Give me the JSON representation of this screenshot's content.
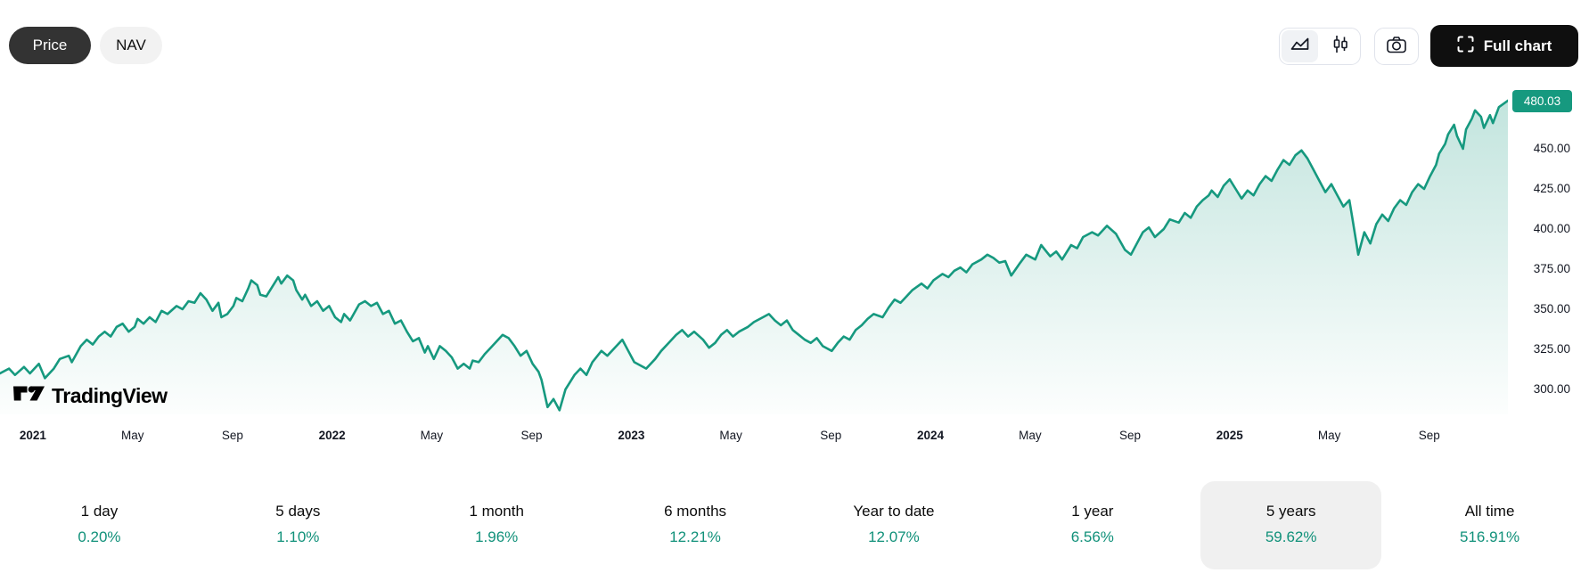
{
  "toolbar": {
    "price_label": "Price",
    "nav_label": "NAV",
    "full_chart_label": "Full chart"
  },
  "logo": {
    "text": "TradingView"
  },
  "price_scale": {
    "current_value": "480.03",
    "labels": [
      "450.00",
      "425.00",
      "400.00",
      "375.00",
      "350.00",
      "325.00",
      "300.00"
    ]
  },
  "time_axis": {
    "ticks": [
      {
        "label": "2021",
        "year": 2021.0,
        "bold": true
      },
      {
        "label": "May",
        "year": 2021.333,
        "bold": false
      },
      {
        "label": "Sep",
        "year": 2021.667,
        "bold": false
      },
      {
        "label": "2022",
        "year": 2022.0,
        "bold": true
      },
      {
        "label": "May",
        "year": 2022.333,
        "bold": false
      },
      {
        "label": "Sep",
        "year": 2022.667,
        "bold": false
      },
      {
        "label": "2023",
        "year": 2023.0,
        "bold": true
      },
      {
        "label": "May",
        "year": 2023.333,
        "bold": false
      },
      {
        "label": "Sep",
        "year": 2023.667,
        "bold": false
      },
      {
        "label": "2024",
        "year": 2024.0,
        "bold": true
      },
      {
        "label": "May",
        "year": 2024.333,
        "bold": false
      },
      {
        "label": "Sep",
        "year": 2024.667,
        "bold": false
      },
      {
        "label": "2025",
        "year": 2025.0,
        "bold": true
      },
      {
        "label": "May",
        "year": 2025.333,
        "bold": false
      },
      {
        "label": "Sep",
        "year": 2025.667,
        "bold": false
      }
    ]
  },
  "stats": {
    "items": [
      {
        "label": "1 day",
        "value": "0.20%",
        "selected": false
      },
      {
        "label": "5 days",
        "value": "1.10%",
        "selected": false
      },
      {
        "label": "1 month",
        "value": "1.96%",
        "selected": false
      },
      {
        "label": "6 months",
        "value": "12.21%",
        "selected": false
      },
      {
        "label": "Year to date",
        "value": "12.07%",
        "selected": false
      },
      {
        "label": "1 year",
        "value": "6.56%",
        "selected": false
      },
      {
        "label": "5 years",
        "value": "59.62%",
        "selected": true
      },
      {
        "label": "All time",
        "value": "516.91%",
        "selected": false
      }
    ]
  },
  "colors": {
    "accent_teal": "#16997f",
    "value_teal": "#11917a",
    "badge_bg": "#16997f",
    "area_top": "rgba(22,153,127,0.26)",
    "area_bottom": "rgba(22,153,127,0.01)",
    "dark_button": "#0f0f0f"
  },
  "chart_data": {
    "type": "area",
    "series_name": "Price",
    "x_unit": "decimal_year",
    "x_range": [
      2020.89,
      2025.93
    ],
    "y_range_visible": [
      300,
      480.03
    ],
    "y_axis_ticks": [
      450,
      425,
      400,
      375,
      350,
      325,
      300
    ],
    "last_value": 480.03,
    "legend_position": "none",
    "grid": false,
    "points": [
      [
        2020.89,
        310
      ],
      [
        2020.92,
        313
      ],
      [
        2020.94,
        309
      ],
      [
        2020.97,
        314
      ],
      [
        2020.99,
        310
      ],
      [
        2021.02,
        316
      ],
      [
        2021.04,
        307
      ],
      [
        2021.07,
        313
      ],
      [
        2021.09,
        319
      ],
      [
        2021.12,
        321
      ],
      [
        2021.13,
        317
      ],
      [
        2021.16,
        327
      ],
      [
        2021.18,
        331
      ],
      [
        2021.2,
        328
      ],
      [
        2021.22,
        333
      ],
      [
        2021.24,
        336
      ],
      [
        2021.26,
        333
      ],
      [
        2021.28,
        339
      ],
      [
        2021.3,
        341
      ],
      [
        2021.32,
        336
      ],
      [
        2021.34,
        339
      ],
      [
        2021.35,
        344
      ],
      [
        2021.37,
        341
      ],
      [
        2021.39,
        345
      ],
      [
        2021.41,
        342
      ],
      [
        2021.43,
        349
      ],
      [
        2021.45,
        347
      ],
      [
        2021.48,
        352
      ],
      [
        2021.5,
        350
      ],
      [
        2021.52,
        355
      ],
      [
        2021.54,
        354
      ],
      [
        2021.56,
        360
      ],
      [
        2021.58,
        356
      ],
      [
        2021.6,
        349
      ],
      [
        2021.62,
        354
      ],
      [
        2021.63,
        345
      ],
      [
        2021.65,
        347
      ],
      [
        2021.67,
        352
      ],
      [
        2021.68,
        357
      ],
      [
        2021.7,
        355
      ],
      [
        2021.72,
        363
      ],
      [
        2021.73,
        368
      ],
      [
        2021.75,
        365
      ],
      [
        2021.76,
        359
      ],
      [
        2021.78,
        358
      ],
      [
        2021.8,
        364
      ],
      [
        2021.82,
        370
      ],
      [
        2021.83,
        366
      ],
      [
        2021.85,
        371
      ],
      [
        2021.87,
        368
      ],
      [
        2021.88,
        362
      ],
      [
        2021.9,
        356
      ],
      [
        2021.91,
        359
      ],
      [
        2021.93,
        352
      ],
      [
        2021.95,
        355
      ],
      [
        2021.97,
        349
      ],
      [
        2021.99,
        352
      ],
      [
        2022.01,
        345
      ],
      [
        2022.03,
        342
      ],
      [
        2022.04,
        347
      ],
      [
        2022.06,
        343
      ],
      [
        2022.09,
        353
      ],
      [
        2022.11,
        355
      ],
      [
        2022.13,
        352
      ],
      [
        2022.15,
        354
      ],
      [
        2022.17,
        347
      ],
      [
        2022.19,
        349
      ],
      [
        2022.21,
        341
      ],
      [
        2022.23,
        343
      ],
      [
        2022.25,
        336
      ],
      [
        2022.27,
        330
      ],
      [
        2022.29,
        332
      ],
      [
        2022.31,
        323
      ],
      [
        2022.32,
        327
      ],
      [
        2022.34,
        319
      ],
      [
        2022.36,
        327
      ],
      [
        2022.38,
        324
      ],
      [
        2022.4,
        320
      ],
      [
        2022.42,
        313
      ],
      [
        2022.44,
        316
      ],
      [
        2022.46,
        313
      ],
      [
        2022.47,
        318
      ],
      [
        2022.49,
        317
      ],
      [
        2022.51,
        322
      ],
      [
        2022.53,
        326
      ],
      [
        2022.55,
        330
      ],
      [
        2022.57,
        334
      ],
      [
        2022.59,
        332
      ],
      [
        2022.61,
        327
      ],
      [
        2022.63,
        321
      ],
      [
        2022.65,
        324
      ],
      [
        2022.67,
        316
      ],
      [
        2022.69,
        311
      ],
      [
        2022.7,
        306
      ],
      [
        2022.72,
        289
      ],
      [
        2022.74,
        294
      ],
      [
        2022.76,
        287
      ],
      [
        2022.78,
        300
      ],
      [
        2022.81,
        309
      ],
      [
        2022.83,
        313
      ],
      [
        2022.85,
        309
      ],
      [
        2022.87,
        317
      ],
      [
        2022.9,
        324
      ],
      [
        2022.92,
        321
      ],
      [
        2022.95,
        327
      ],
      [
        2022.97,
        331
      ],
      [
        2022.99,
        324
      ],
      [
        2023.01,
        317
      ],
      [
        2023.03,
        315
      ],
      [
        2023.05,
        313
      ],
      [
        2023.08,
        319
      ],
      [
        2023.1,
        324
      ],
      [
        2023.13,
        330
      ],
      [
        2023.15,
        334
      ],
      [
        2023.17,
        337
      ],
      [
        2023.19,
        333
      ],
      [
        2023.21,
        336
      ],
      [
        2023.24,
        331
      ],
      [
        2023.26,
        326
      ],
      [
        2023.28,
        329
      ],
      [
        2023.3,
        334
      ],
      [
        2023.32,
        337
      ],
      [
        2023.34,
        333
      ],
      [
        2023.36,
        336
      ],
      [
        2023.39,
        339
      ],
      [
        2023.41,
        342
      ],
      [
        2023.44,
        345
      ],
      [
        2023.46,
        347
      ],
      [
        2023.48,
        343
      ],
      [
        2023.5,
        340
      ],
      [
        2023.52,
        343
      ],
      [
        2023.54,
        337
      ],
      [
        2023.56,
        334
      ],
      [
        2023.58,
        331
      ],
      [
        2023.6,
        329
      ],
      [
        2023.62,
        332
      ],
      [
        2023.64,
        327
      ],
      [
        2023.67,
        324
      ],
      [
        2023.69,
        329
      ],
      [
        2023.71,
        333
      ],
      [
        2023.73,
        331
      ],
      [
        2023.75,
        337
      ],
      [
        2023.77,
        340
      ],
      [
        2023.79,
        344
      ],
      [
        2023.81,
        347
      ],
      [
        2023.84,
        345
      ],
      [
        2023.86,
        351
      ],
      [
        2023.88,
        356
      ],
      [
        2023.9,
        354
      ],
      [
        2023.92,
        358
      ],
      [
        2023.94,
        362
      ],
      [
        2023.97,
        366
      ],
      [
        2023.99,
        363
      ],
      [
        2024.01,
        368
      ],
      [
        2024.04,
        372
      ],
      [
        2024.06,
        370
      ],
      [
        2024.08,
        374
      ],
      [
        2024.1,
        376
      ],
      [
        2024.12,
        373
      ],
      [
        2024.14,
        378
      ],
      [
        2024.17,
        381
      ],
      [
        2024.19,
        384
      ],
      [
        2024.21,
        382
      ],
      [
        2024.23,
        379
      ],
      [
        2024.25,
        380
      ],
      [
        2024.27,
        371
      ],
      [
        2024.3,
        379
      ],
      [
        2024.32,
        384
      ],
      [
        2024.35,
        381
      ],
      [
        2024.37,
        390
      ],
      [
        2024.4,
        383
      ],
      [
        2024.42,
        386
      ],
      [
        2024.44,
        381
      ],
      [
        2024.47,
        390
      ],
      [
        2024.49,
        388
      ],
      [
        2024.51,
        395
      ],
      [
        2024.54,
        398
      ],
      [
        2024.56,
        396
      ],
      [
        2024.59,
        402
      ],
      [
        2024.62,
        397
      ],
      [
        2024.65,
        387
      ],
      [
        2024.67,
        384
      ],
      [
        2024.69,
        391
      ],
      [
        2024.71,
        398
      ],
      [
        2024.73,
        401
      ],
      [
        2024.75,
        395
      ],
      [
        2024.78,
        400
      ],
      [
        2024.8,
        406
      ],
      [
        2024.83,
        404
      ],
      [
        2024.85,
        410
      ],
      [
        2024.87,
        407
      ],
      [
        2024.89,
        414
      ],
      [
        2024.91,
        418
      ],
      [
        2024.93,
        421
      ],
      [
        2024.94,
        424
      ],
      [
        2024.96,
        420
      ],
      [
        2024.98,
        427
      ],
      [
        2025.0,
        431
      ],
      [
        2025.02,
        425
      ],
      [
        2025.04,
        419
      ],
      [
        2025.06,
        424
      ],
      [
        2025.08,
        421
      ],
      [
        2025.1,
        428
      ],
      [
        2025.12,
        433
      ],
      [
        2025.14,
        430
      ],
      [
        2025.16,
        437
      ],
      [
        2025.18,
        443
      ],
      [
        2025.2,
        440
      ],
      [
        2025.22,
        446
      ],
      [
        2025.24,
        449
      ],
      [
        2025.26,
        444
      ],
      [
        2025.28,
        437
      ],
      [
        2025.3,
        430
      ],
      [
        2025.32,
        423
      ],
      [
        2025.34,
        428
      ],
      [
        2025.36,
        421
      ],
      [
        2025.38,
        414
      ],
      [
        2025.4,
        418
      ],
      [
        2025.41,
        407
      ],
      [
        2025.43,
        384
      ],
      [
        2025.45,
        398
      ],
      [
        2025.47,
        391
      ],
      [
        2025.49,
        403
      ],
      [
        2025.51,
        409
      ],
      [
        2025.53,
        405
      ],
      [
        2025.55,
        413
      ],
      [
        2025.57,
        418
      ],
      [
        2025.59,
        415
      ],
      [
        2025.61,
        423
      ],
      [
        2025.63,
        428
      ],
      [
        2025.65,
        425
      ],
      [
        2025.67,
        433
      ],
      [
        2025.69,
        440
      ],
      [
        2025.7,
        447
      ],
      [
        2025.72,
        453
      ],
      [
        2025.73,
        459
      ],
      [
        2025.75,
        465
      ],
      [
        2025.76,
        458
      ],
      [
        2025.78,
        450
      ],
      [
        2025.79,
        462
      ],
      [
        2025.81,
        469
      ],
      [
        2025.82,
        474
      ],
      [
        2025.84,
        470
      ],
      [
        2025.85,
        463
      ],
      [
        2025.87,
        471
      ],
      [
        2025.88,
        466
      ],
      [
        2025.9,
        476
      ],
      [
        2025.93,
        480.03
      ]
    ]
  }
}
